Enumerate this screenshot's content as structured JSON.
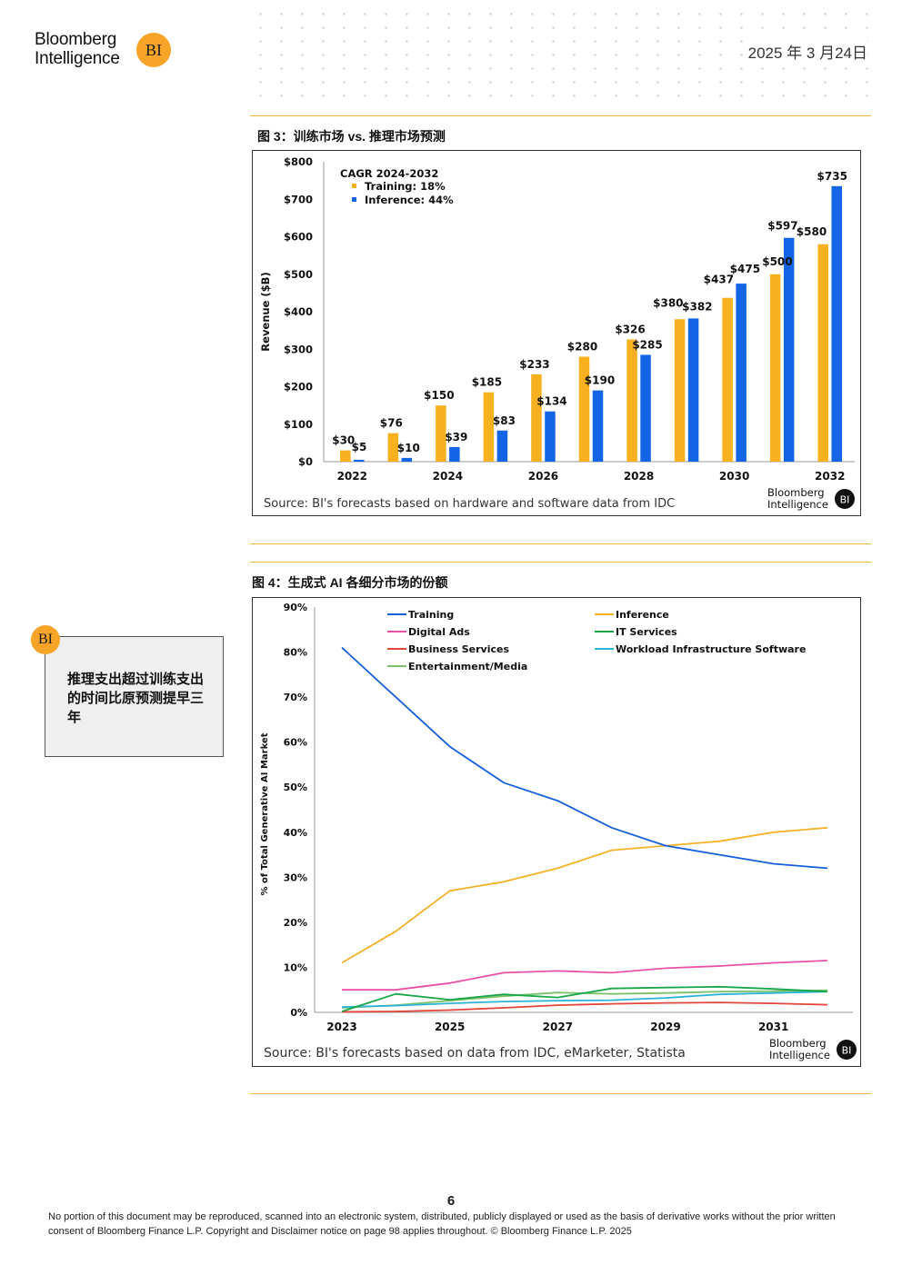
{
  "header": {
    "logo_line1": "Bloomberg",
    "logo_line2": "Intelligence",
    "logo_badge": "BI",
    "date": "2025 年 3 月24日"
  },
  "figure3": {
    "title": "图 3：训练市场 vs. 推理市场预测",
    "source": "Source: BI's forecasts based on hardware and software data from IDC",
    "logo_line1": "Bloomberg",
    "logo_line2": "Intelligence",
    "logo_badge": "BI"
  },
  "figure4": {
    "title": "图 4：生成式 AI 各细分市场的份额",
    "source": "Source: BI's forecasts based on data from IDC, eMarketer, Statista",
    "logo_line1": "Bloomberg",
    "logo_line2": "Intelligence",
    "logo_badge": "BI"
  },
  "callout": {
    "badge": "BI",
    "text": "推理支出超过训练支出的时间比原预测提早三年"
  },
  "footer": {
    "page_number": "6",
    "disclaimer": "No portion of this document may be reproduced, scanned into an electronic system, distributed, publicly displayed or used as the basis of derivative works without the prior written consent of Bloomberg Finance L.P. Copyright and Disclaimer notice on page 98 applies throughout. © Bloomberg Finance L.P. 2025"
  },
  "chart_data": [
    {
      "type": "bar",
      "categories": [
        "2022",
        "2023",
        "2024",
        "2025",
        "2026",
        "2027",
        "2028",
        "2029",
        "2030",
        "2031",
        "2032"
      ],
      "x_tick_labels": [
        "2022",
        "",
        "2024",
        "",
        "2026",
        "",
        "2028",
        "",
        "2030",
        "",
        "2032"
      ],
      "ylabel": "Revenue ($B)",
      "ylim": [
        0,
        800
      ],
      "yticks": [
        0,
        100,
        200,
        300,
        400,
        500,
        600,
        700,
        800
      ],
      "ytick_labels": [
        "$0",
        "$100",
        "$200",
        "$300",
        "$400",
        "$500",
        "$600",
        "$700",
        "$800"
      ],
      "legend_title": "CAGR 2024-2032",
      "legend_position": "top-left",
      "series": [
        {
          "name": "Training: 18%",
          "color": "#f7b11e",
          "values": [
            30,
            76,
            150,
            185,
            233,
            280,
            326,
            380,
            437,
            500,
            580
          ],
          "labels": [
            "$30",
            "$76",
            "$150",
            "$185",
            "$233",
            "$280",
            "$326",
            "$380",
            "$437",
            "$500",
            "$580"
          ]
        },
        {
          "name": "Inference: 44%",
          "color": "#1464e6",
          "values": [
            5,
            10,
            39,
            83,
            134,
            190,
            285,
            382,
            475,
            597,
            735
          ],
          "labels": [
            "$5",
            "$10",
            "$39",
            "$83",
            "$134",
            "$190",
            "$285",
            "$382",
            "$475",
            "$597",
            "$735"
          ]
        }
      ],
      "grid": false
    },
    {
      "type": "line",
      "x": [
        2023,
        2024,
        2025,
        2026,
        2027,
        2028,
        2029,
        2030,
        2031,
        2032
      ],
      "xticks": [
        2023,
        2025,
        2027,
        2029,
        2031
      ],
      "ylabel": "% of Total Generative AI Market",
      "ylim": [
        0,
        90
      ],
      "yticks": [
        0,
        10,
        20,
        30,
        40,
        50,
        60,
        70,
        80,
        90
      ],
      "ytick_labels": [
        "0%",
        "10%",
        "20%",
        "30%",
        "40%",
        "50%",
        "60%",
        "70%",
        "80%",
        "90%"
      ],
      "legend_position": "top",
      "grid": false,
      "series": [
        {
          "name": "Training",
          "color": "#1560d8",
          "values": [
            81,
            70,
            59,
            51,
            47,
            41,
            37,
            35,
            33,
            32
          ]
        },
        {
          "name": "Inference",
          "color": "#f5b229",
          "values": [
            11,
            18,
            27,
            29,
            32,
            36,
            37,
            38,
            40,
            41
          ]
        },
        {
          "name": "Digital Ads",
          "color": "#ea4fa8",
          "values": [
            5,
            5,
            6.5,
            8.8,
            9.2,
            8.8,
            9.8,
            10.3,
            11,
            11.5
          ]
        },
        {
          "name": "IT Services",
          "color": "#1aa64a",
          "values": [
            0.2,
            4.1,
            2.8,
            4,
            3.3,
            5.3,
            5.5,
            5.7,
            5.2,
            4.6
          ]
        },
        {
          "name": "Business Services",
          "color": "#e2453a",
          "values": [
            0.1,
            0.2,
            0.5,
            1,
            1.6,
            1.9,
            2.1,
            2.2,
            2,
            1.7
          ]
        },
        {
          "name": "Workload Infrastructure Software",
          "color": "#2bb3d6",
          "values": [
            1.2,
            1.5,
            2,
            2.4,
            2.6,
            2.7,
            3.2,
            4,
            4.3,
            4.6
          ]
        },
        {
          "name": "Entertainment/Media",
          "color": "#7cc26a",
          "values": [
            1,
            1.6,
            2.6,
            3.6,
            4.4,
            4.1,
            4.3,
            4.6,
            4.7,
            4.9
          ]
        }
      ]
    }
  ]
}
